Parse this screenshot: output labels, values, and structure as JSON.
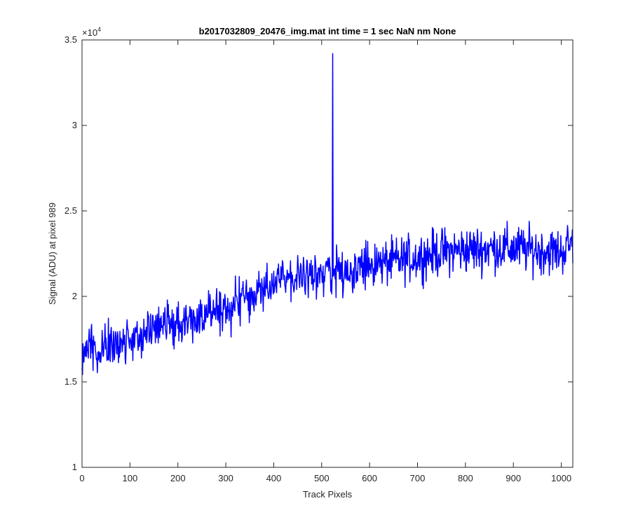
{
  "chart_data": {
    "type": "line",
    "title": "b2017032809_20476_img.mat int time = 1 sec  NaN nm None",
    "xlabel": "Track Pixels",
    "ylabel": "Signal (ADU) at pixel 989",
    "exponent_label": "×10",
    "exponent_power": "4",
    "xlim": [
      0,
      1024
    ],
    "ylim": [
      10000,
      35000
    ],
    "xticks": [
      0,
      100,
      200,
      300,
      400,
      500,
      600,
      700,
      800,
      900,
      1000
    ],
    "xtick_labels": [
      "0",
      "100",
      "200",
      "300",
      "400",
      "500",
      "600",
      "700",
      "800",
      "900",
      "1000"
    ],
    "yticks": [
      10000,
      15000,
      20000,
      25000,
      30000,
      35000
    ],
    "ytick_labels": [
      "1",
      "1.5",
      "2",
      "2.5",
      "3",
      "3.5"
    ],
    "grid": false,
    "line_color": "#0000ff",
    "series": [
      {
        "trend_x": [
          0,
          2,
          10,
          50,
          100,
          150,
          200,
          250,
          300,
          350,
          400,
          450,
          500,
          550,
          600,
          650,
          700,
          750,
          800,
          850,
          900,
          950,
          1000,
          1024
        ],
        "trend_y": [
          15800,
          16800,
          17200,
          17000,
          17600,
          18100,
          18500,
          18900,
          19300,
          20000,
          20700,
          21200,
          21400,
          21500,
          21800,
          22000,
          22300,
          22600,
          22700,
          22800,
          22800,
          22700,
          22600,
          23200
        ],
        "noise_amplitude": 900,
        "spike": {
          "x": 523,
          "y": 34200
        }
      }
    ]
  }
}
